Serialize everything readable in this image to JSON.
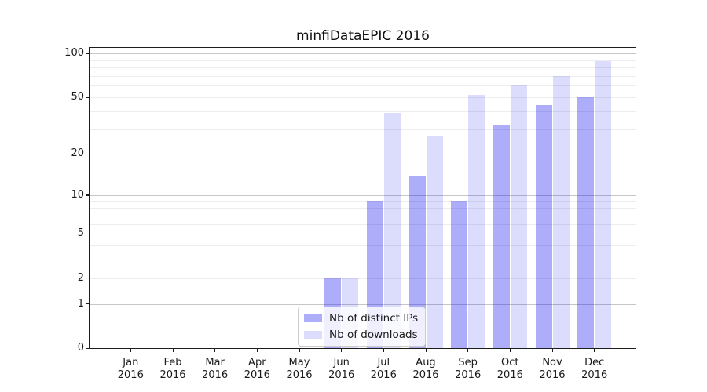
{
  "title": "minfiDataEPIC 2016",
  "legend": {
    "entries": [
      "Nb of distinct IPs",
      "Nb of downloads"
    ],
    "position": "lower center"
  },
  "colors": {
    "bar_dark": "rgba(20,20,240,0.35)",
    "bar_light": "rgba(20,20,240,0.15)",
    "grid_major": "#c6c6c6",
    "grid_minor": "#ededed",
    "axis": "#1c1c1c"
  },
  "chart_data": {
    "type": "bar",
    "title": "minfiDataEPIC 2016",
    "xlabel": "",
    "ylabel": "",
    "categories": [
      "Jan",
      "Feb",
      "Mar",
      "Apr",
      "May",
      "Jun",
      "Jul",
      "Aug",
      "Sep",
      "Oct",
      "Nov",
      "Dec"
    ],
    "category_year_label": "2016",
    "series": [
      {
        "name": "Nb of distinct IPs",
        "color": "rgba(20,20,240,0.35)",
        "values": [
          0,
          0,
          0,
          0,
          0,
          2,
          9,
          14,
          9,
          32,
          44,
          50
        ]
      },
      {
        "name": "Nb of downloads",
        "color": "rgba(20,20,240,0.15)",
        "values": [
          0,
          0,
          0,
          0,
          0,
          2,
          39,
          27,
          52,
          60,
          70,
          89
        ]
      }
    ],
    "yscale": "log1p",
    "ylim": [
      0,
      111
    ],
    "yticks": [
      0,
      1,
      2,
      5,
      10,
      20,
      50,
      100
    ],
    "grid": {
      "major": [
        1,
        10,
        100
      ],
      "minor": [
        2,
        3,
        4,
        5,
        6,
        7,
        8,
        9,
        20,
        30,
        40,
        50,
        60,
        70,
        80,
        90
      ]
    },
    "grid_on": true,
    "legend_position": "lower center"
  }
}
